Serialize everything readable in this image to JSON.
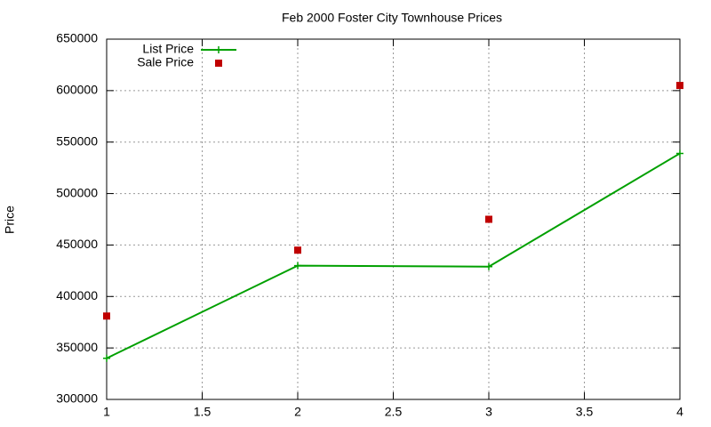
{
  "chart_data": {
    "type": "line",
    "title": "Feb 2000 Foster City Townhouse Prices",
    "y_label": "Price",
    "x": [
      1,
      2,
      3,
      4
    ],
    "series": [
      {
        "name": "List Price",
        "color": "#00a000",
        "mode": "lines+points",
        "values": [
          340000,
          430000,
          429000,
          539000
        ]
      },
      {
        "name": "Sale Price",
        "color": "#c00000",
        "mode": "points",
        "values": [
          381000,
          445000,
          475000,
          605000
        ]
      }
    ],
    "xlim": [
      1,
      4
    ],
    "xticks": [
      1,
      1.5,
      2,
      2.5,
      3,
      3.5,
      4
    ],
    "ylim": [
      300000,
      650000
    ],
    "yticks": [
      300000,
      350000,
      400000,
      450000,
      500000,
      550000,
      600000,
      650000
    ],
    "grid": true,
    "legend": "top-left"
  }
}
